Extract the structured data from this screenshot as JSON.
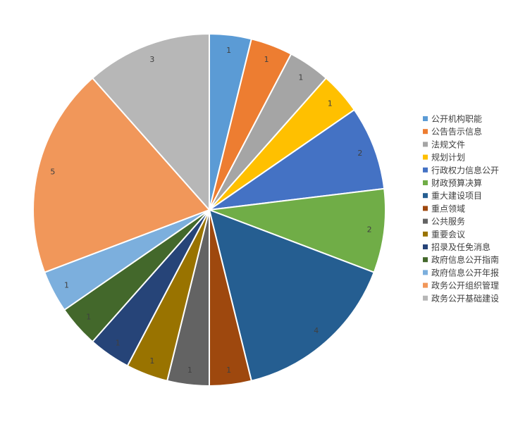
{
  "chart_data": {
    "type": "pie",
    "legend_position": "right",
    "slices": [
      {
        "label": "公开机构职能",
        "value": 1,
        "color": "#5B9BD5"
      },
      {
        "label": "公告告示信息",
        "value": 1,
        "color": "#ED7D31"
      },
      {
        "label": "法规文件",
        "value": 1,
        "color": "#A5A5A5"
      },
      {
        "label": "规划计划",
        "value": 1,
        "color": "#FFC000"
      },
      {
        "label": "行政权力信息公开",
        "value": 2,
        "color": "#4472C4"
      },
      {
        "label": "财政预算决算",
        "value": 2,
        "color": "#70AD47"
      },
      {
        "label": "重大建设项目",
        "value": 4,
        "color": "#255E91"
      },
      {
        "label": "重点领域",
        "value": 1,
        "color": "#9E480E"
      },
      {
        "label": "公共服务",
        "value": 1,
        "color": "#636363"
      },
      {
        "label": "重要会议",
        "value": 1,
        "color": "#997300"
      },
      {
        "label": "招录及任免消息",
        "value": 1,
        "color": "#264478"
      },
      {
        "label": "政府信息公开指南",
        "value": 1,
        "color": "#43682B"
      },
      {
        "label": "政府信息公开年报",
        "value": 1,
        "color": "#7CAFDD"
      },
      {
        "label": "政务公开组织管理",
        "value": 5,
        "color": "#F1975A"
      },
      {
        "label": "政务公开基础建设",
        "value": 3,
        "color": "#B7B7B7"
      }
    ]
  }
}
